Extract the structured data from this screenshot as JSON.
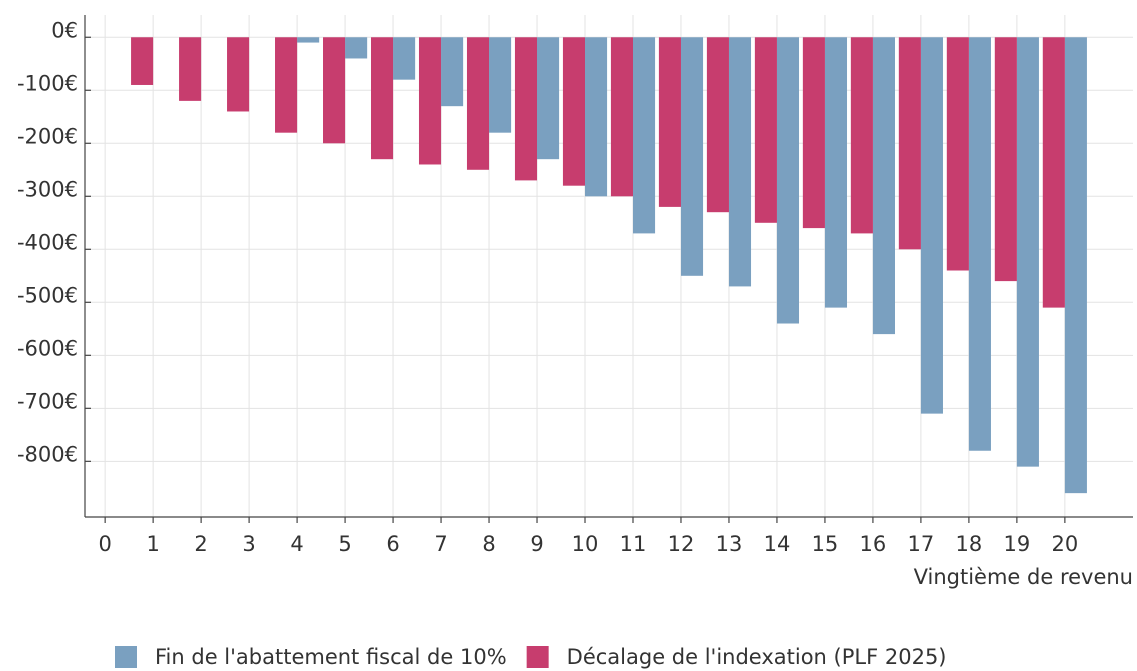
{
  "chart_data": {
    "type": "bar",
    "x_label": "Vingtième de revenu",
    "x": [
      1,
      2,
      3,
      4,
      5,
      6,
      7,
      8,
      9,
      10,
      11,
      12,
      13,
      14,
      15,
      16,
      17,
      18,
      19,
      20
    ],
    "series": [
      {
        "name": "Fin de l'abattement fiscal de 10%",
        "color": "#7aa0c0",
        "values": [
          0,
          0,
          0,
          -10,
          -40,
          -80,
          -130,
          -180,
          -230,
          -300,
          -370,
          -450,
          -470,
          -540,
          -510,
          -560,
          -710,
          -780,
          -810,
          -860
        ]
      },
      {
        "name": "Décalage de l'indexation (PLF 2025)",
        "color": "#c73d6e",
        "values": [
          -90,
          -120,
          -140,
          -180,
          -200,
          -230,
          -240,
          -250,
          -270,
          -280,
          -300,
          -320,
          -330,
          -350,
          -360,
          -370,
          -400,
          -440,
          -460,
          -510
        ]
      }
    ],
    "xlim": [
      -0.42,
      21.42
    ],
    "xticks": [
      0,
      1,
      2,
      3,
      4,
      5,
      6,
      7,
      8,
      9,
      10,
      11,
      12,
      13,
      14,
      15,
      16,
      17,
      18,
      19,
      20
    ],
    "ylim": [
      -905,
      42
    ],
    "yticks": [
      {
        "value": 0,
        "label": "0€"
      },
      {
        "value": -100,
        "label": "-100€"
      },
      {
        "value": -200,
        "label": "-200€"
      },
      {
        "value": -300,
        "label": "-300€"
      },
      {
        "value": -400,
        "label": "-400€"
      },
      {
        "value": -500,
        "label": "-500€"
      },
      {
        "value": -600,
        "label": "-600€"
      },
      {
        "value": -700,
        "label": "-700€"
      },
      {
        "value": -800,
        "label": "-800€"
      }
    ],
    "grid": true,
    "legend": "bottom"
  }
}
